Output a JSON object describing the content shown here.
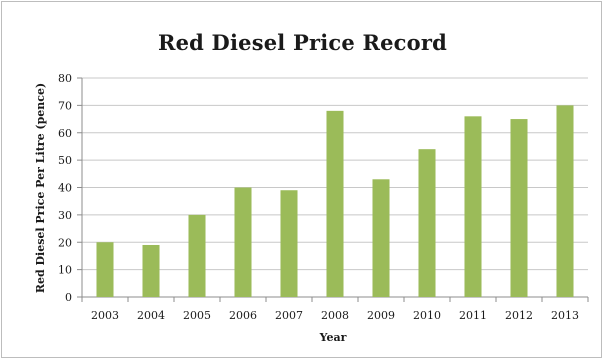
{
  "chart_data": {
    "type": "bar",
    "title": "Red Diesel Price Record",
    "xlabel": "Year",
    "ylabel": "Red Diesel Price Per Litre (pence)",
    "categories": [
      "2003",
      "2004",
      "2005",
      "2006",
      "2007",
      "2008",
      "2009",
      "2010",
      "2011",
      "2012",
      "2013"
    ],
    "values": [
      20,
      19,
      30,
      40,
      39,
      68,
      43,
      54,
      66,
      65,
      70
    ],
    "ylim": [
      0,
      80
    ],
    "yticks": [
      0,
      10,
      20,
      30,
      40,
      50,
      60,
      70,
      80
    ],
    "grid": true,
    "legend": "none",
    "bar_color": "#9bbb59",
    "grid_color": "#c8c8c8",
    "axis_color": "#8c8c8c"
  }
}
